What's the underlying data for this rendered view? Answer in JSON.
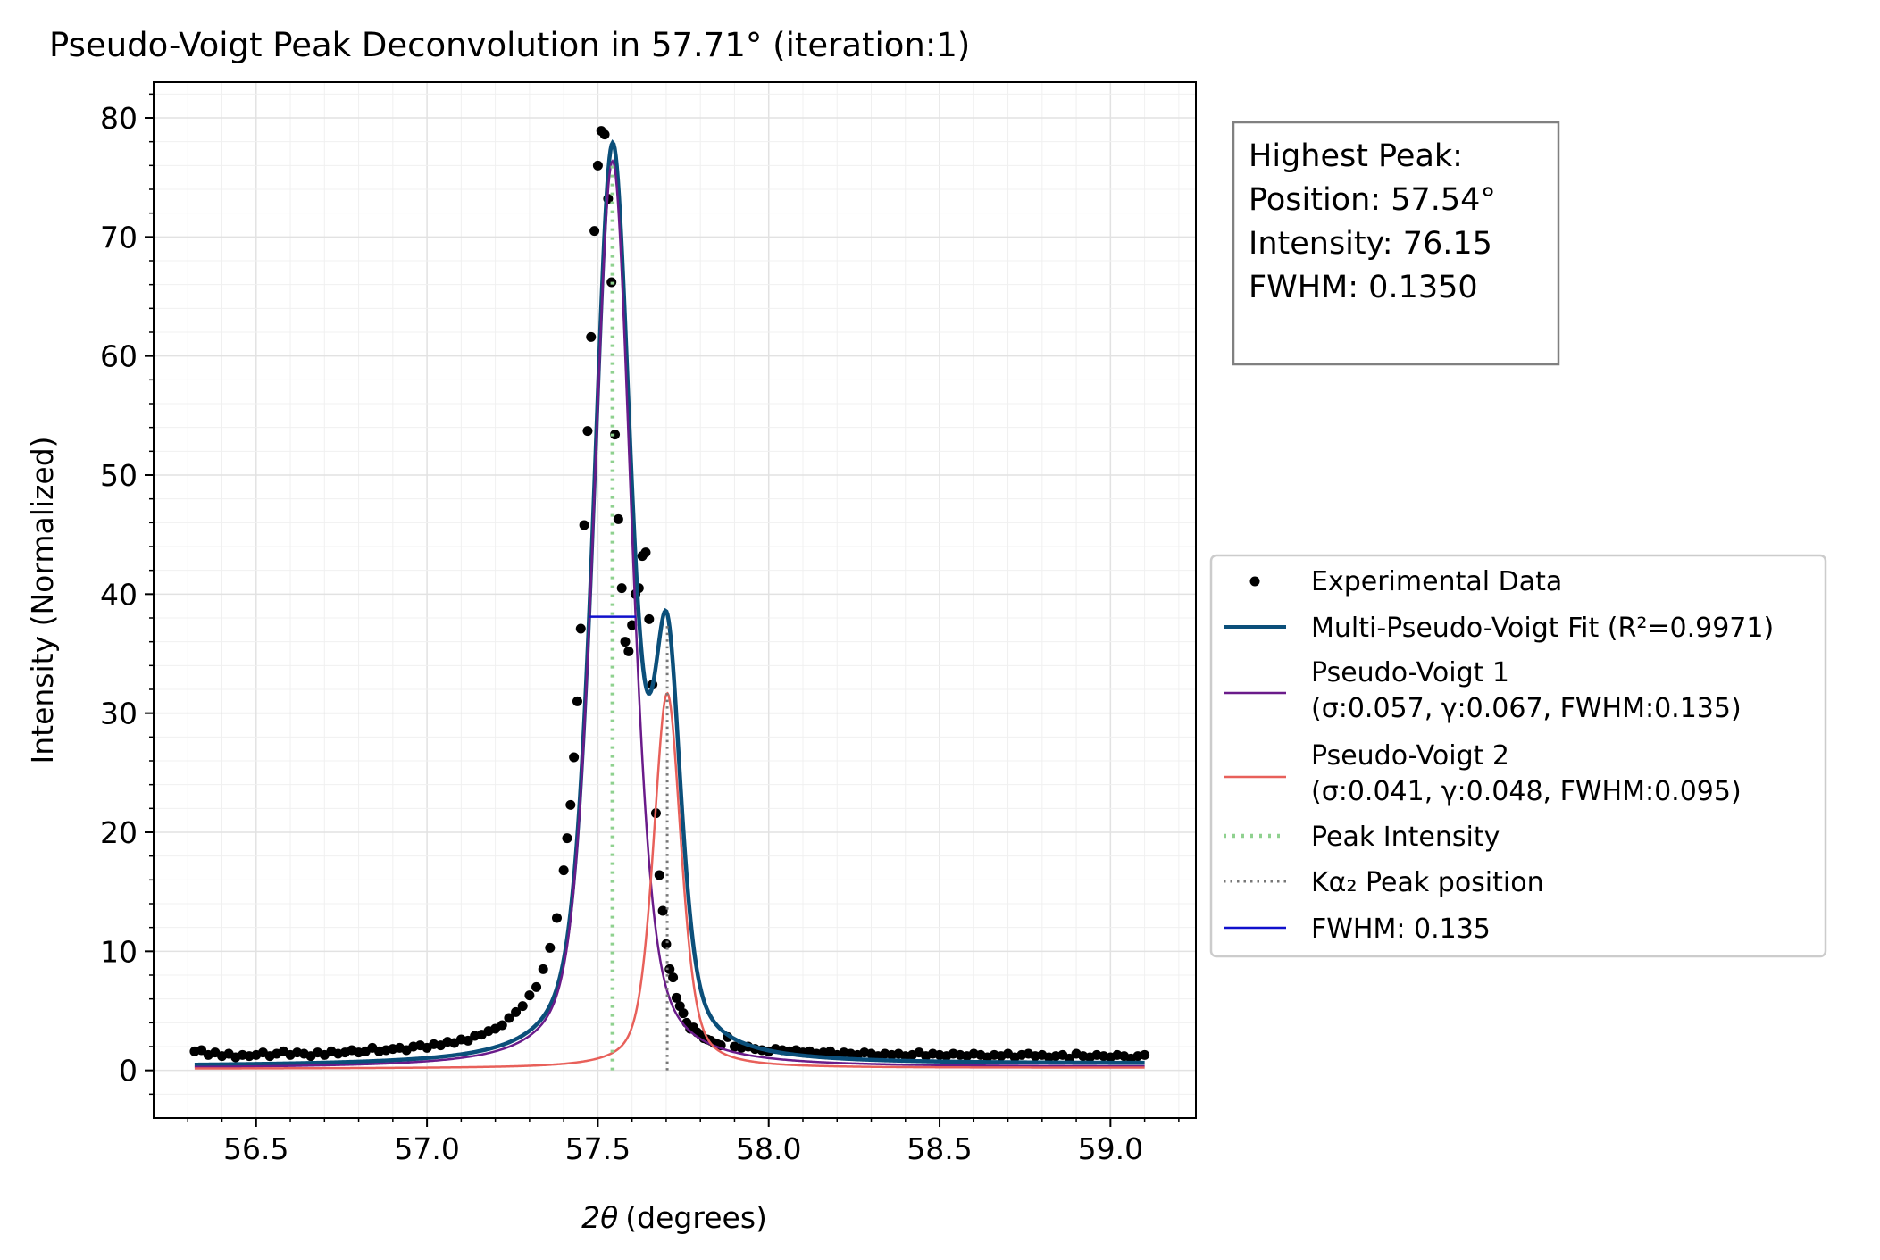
{
  "chart_data": {
    "type": "line",
    "title": "Pseudo-Voigt Peak Deconvolution in 57.71° (iteration:1)",
    "xlabel": "(degrees)",
    "xlabel_symbol": "2θ",
    "ylabel": "Intensity (Normalized)",
    "xlim": [
      56.2,
      59.25
    ],
    "ylim": [
      -4,
      83
    ],
    "x_ticks": [
      56.5,
      57.0,
      57.5,
      58.0,
      58.5,
      59.0
    ],
    "x_tick_labels": [
      "56.5",
      "57.0",
      "57.5",
      "58.0",
      "58.5",
      "59.0"
    ],
    "y_ticks": [
      0,
      10,
      20,
      30,
      40,
      50,
      60,
      70,
      80
    ],
    "y_tick_labels": [
      "0",
      "10",
      "20",
      "30",
      "40",
      "50",
      "60",
      "70",
      "80"
    ],
    "grid": true,
    "legend_position": "right, outside plot, center",
    "colors": {
      "data": "#000000",
      "fit": "#0b4f7a",
      "pv1": "#6a1b8a",
      "pv2": "#e8605a",
      "peak_intensity": "#8fd18f",
      "ka2": "#777777",
      "fwhm": "#1010cc"
    },
    "components": [
      {
        "center": 57.543,
        "amplitude": 76.15,
        "sigma": 0.057,
        "gamma": 0.067,
        "fwhm": 0.135
      },
      {
        "center": 57.703,
        "amplitude": 31.5,
        "sigma": 0.041,
        "gamma": 0.048,
        "fwhm": 0.095
      }
    ],
    "baseline": [
      0.35,
      0.55
    ],
    "x_range": [
      56.32,
      59.1
    ],
    "peak_intensity_line": {
      "x": 57.543,
      "y": [
        0,
        76.15
      ]
    },
    "ka2_line": {
      "x": 57.703,
      "y": [
        0,
        37.5
      ]
    },
    "fwhm_line": {
      "x": [
        57.476,
        57.611
      ],
      "y": 38.1
    },
    "experimental_data": {
      "x": [
        56.32,
        56.34,
        56.36,
        56.38,
        56.4,
        56.42,
        56.44,
        56.46,
        56.48,
        56.5,
        56.52,
        56.54,
        56.56,
        56.58,
        56.6,
        56.62,
        56.64,
        56.66,
        56.68,
        56.7,
        56.72,
        56.74,
        56.76,
        56.78,
        56.8,
        56.82,
        56.84,
        56.86,
        56.88,
        56.9,
        56.92,
        56.94,
        56.96,
        56.98,
        57.0,
        57.02,
        57.04,
        57.06,
        57.08,
        57.1,
        57.12,
        57.14,
        57.16,
        57.18,
        57.2,
        57.22,
        57.24,
        57.26,
        57.28,
        57.3,
        57.32,
        57.34,
        57.36,
        57.38,
        57.4,
        57.41,
        57.42,
        57.43,
        57.44,
        57.45,
        57.46,
        57.47,
        57.48,
        57.49,
        57.5,
        57.51,
        57.52,
        57.53,
        57.54,
        57.55,
        57.56,
        57.57,
        57.58,
        57.59,
        57.6,
        57.61,
        57.62,
        57.63,
        57.64,
        57.65,
        57.66,
        57.67,
        57.68,
        57.69,
        57.7,
        57.71,
        57.72,
        57.73,
        57.74,
        57.75,
        57.76,
        57.77,
        57.78,
        57.79,
        57.8,
        57.81,
        57.82,
        57.83,
        57.84,
        57.85,
        57.86,
        57.88,
        57.9,
        57.92,
        57.94,
        57.96,
        57.98,
        58.0,
        58.02,
        58.04,
        58.06,
        58.08,
        58.1,
        58.12,
        58.14,
        58.16,
        58.18,
        58.2,
        58.22,
        58.24,
        58.26,
        58.28,
        58.3,
        58.32,
        58.34,
        58.36,
        58.38,
        58.4,
        58.42,
        58.44,
        58.46,
        58.48,
        58.5,
        58.52,
        58.54,
        58.56,
        58.58,
        58.6,
        58.62,
        58.64,
        58.66,
        58.68,
        58.7,
        58.72,
        58.74,
        58.76,
        58.78,
        58.8,
        58.82,
        58.84,
        58.86,
        58.88,
        58.9,
        58.92,
        58.94,
        58.96,
        58.98,
        59.0,
        59.02,
        59.04,
        59.06,
        59.08,
        59.1
      ],
      "y": [
        1.6,
        1.7,
        1.3,
        1.5,
        1.2,
        1.4,
        1.1,
        1.3,
        1.2,
        1.3,
        1.5,
        1.2,
        1.4,
        1.6,
        1.3,
        1.5,
        1.4,
        1.2,
        1.5,
        1.3,
        1.6,
        1.4,
        1.5,
        1.7,
        1.5,
        1.6,
        1.9,
        1.6,
        1.7,
        1.8,
        1.9,
        1.7,
        2.0,
        2.1,
        1.9,
        2.2,
        2.1,
        2.4,
        2.3,
        2.6,
        2.5,
        2.9,
        3.0,
        3.3,
        3.5,
        3.8,
        4.4,
        4.9,
        5.4,
        6.3,
        7.0,
        8.5,
        10.3,
        12.8,
        16.8,
        19.5,
        22.3,
        26.3,
        31.0,
        37.1,
        45.8,
        53.7,
        61.6,
        70.5,
        76.0,
        78.9,
        78.6,
        73.2,
        66.2,
        53.4,
        46.3,
        40.5,
        36.0,
        35.2,
        37.4,
        40.0,
        40.5,
        43.2,
        43.5,
        37.9,
        32.4,
        21.6,
        16.4,
        13.4,
        10.6,
        8.5,
        7.8,
        6.1,
        5.4,
        4.8,
        4.0,
        3.5,
        3.6,
        3.2,
        3.0,
        2.7,
        2.6,
        2.5,
        2.3,
        2.2,
        2.1,
        2.8,
        2.0,
        1.9,
        2.0,
        1.8,
        1.7,
        1.6,
        1.8,
        1.7,
        1.6,
        1.7,
        1.5,
        1.6,
        1.4,
        1.5,
        1.6,
        1.3,
        1.5,
        1.4,
        1.3,
        1.5,
        1.4,
        1.2,
        1.4,
        1.3,
        1.4,
        1.2,
        1.3,
        1.5,
        1.2,
        1.4,
        1.3,
        1.2,
        1.4,
        1.3,
        1.2,
        1.4,
        1.3,
        1.1,
        1.3,
        1.2,
        1.4,
        1.1,
        1.3,
        1.4,
        1.2,
        1.3,
        1.1,
        1.2,
        1.3,
        1.0,
        1.4,
        1.2,
        1.1,
        1.3,
        1.2,
        1.1,
        1.3,
        1.2,
        1.0,
        1.2,
        1.3
      ]
    },
    "series": [
      {
        "name": "Experimental Data",
        "style": "markers"
      },
      {
        "name": "Multi-Pseudo-Voigt Fit (R²=0.9971)",
        "style": "line"
      },
      {
        "name": "Pseudo-Voigt 1",
        "detail": "(σ:0.057, γ:0.067, FWHM:0.135)",
        "style": "line"
      },
      {
        "name": "Pseudo-Voigt 2",
        "detail": "(σ:0.041, γ:0.048, FWHM:0.095)",
        "style": "line"
      },
      {
        "name": "Peak Intensity",
        "style": "dotted"
      },
      {
        "name": "Kα₂ Peak position",
        "style": "dotted"
      },
      {
        "name": "FWHM: 0.135",
        "style": "line"
      }
    ],
    "annotation": {
      "lines": [
        "Highest Peak:",
        "Position: 57.54°",
        "Intensity: 76.15",
        "FWHM: 0.1350"
      ]
    }
  }
}
